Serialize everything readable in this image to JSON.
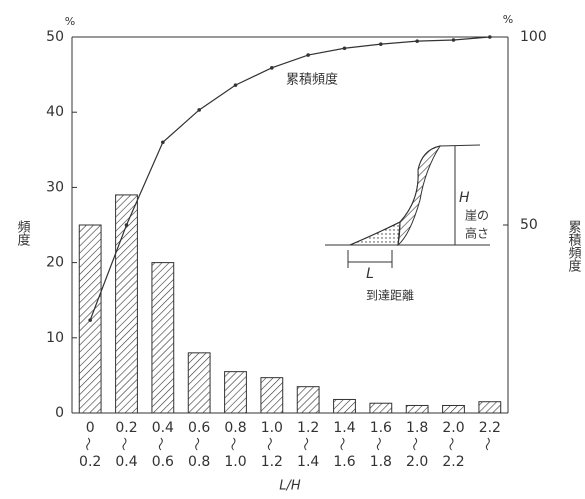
{
  "chart_data": {
    "type": "bar",
    "categories": [
      [
        "0",
        "0.2"
      ],
      [
        "0.2",
        "0.4"
      ],
      [
        "0.4",
        "0.6"
      ],
      [
        "0.6",
        "0.8"
      ],
      [
        "0.8",
        "1.0"
      ],
      [
        "1.0",
        "1.2"
      ],
      [
        "1.2",
        "1.4"
      ],
      [
        "1.4",
        "1.6"
      ],
      [
        "1.6",
        "1.8"
      ],
      [
        "1.8",
        "2.0"
      ],
      [
        "2.0",
        "2.2"
      ],
      [
        "2.2"
      ]
    ],
    "values": [
      25,
      29,
      20,
      8,
      5.5,
      4.7,
      3.5,
      1.8,
      1.3,
      1,
      1,
      1.5
    ],
    "color": "#333333",
    "ylim": [
      0,
      50
    ],
    "yticks": [
      0,
      10,
      20,
      30,
      40,
      50
    ],
    "y2lim": [
      0,
      100
    ],
    "y2ticks": [
      50,
      100
    ],
    "y_unit": "%",
    "y2_unit": "%",
    "ylabel": "頻度",
    "y2label": "累積頻度",
    "xlabel": "L/H",
    "line": {
      "name": "累積頻度",
      "axis": "y2",
      "values": [
        24.7,
        50,
        72,
        80.6,
        87.2,
        91.8,
        95.2,
        97,
        98.1,
        98.9,
        99.2,
        100
      ]
    },
    "inset": {
      "h": "H",
      "height_1": "崖の",
      "height_2": "高さ",
      "l": "L",
      "distance": "到達距離"
    }
  }
}
